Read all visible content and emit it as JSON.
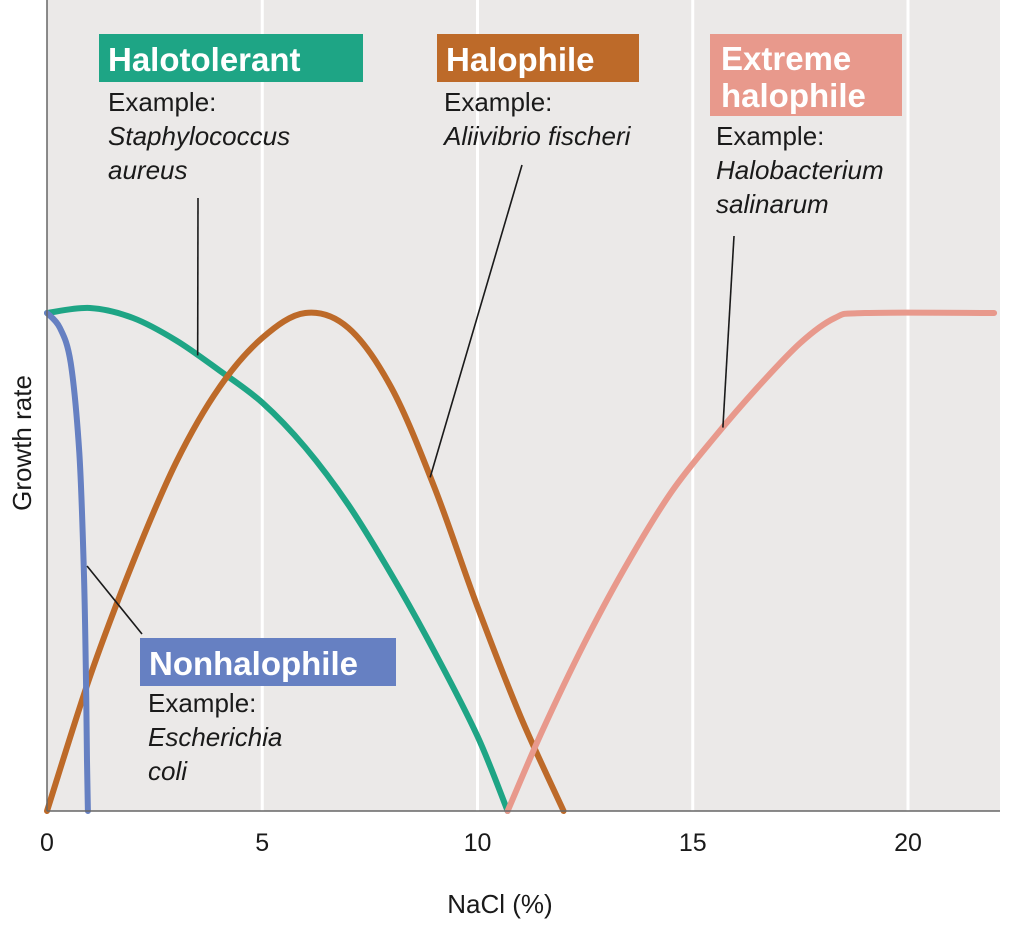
{
  "chart_data": {
    "type": "line",
    "xlabel": "NaCl (%)",
    "ylabel": "Growth rate",
    "xlim": [
      0,
      22
    ],
    "ylim": [
      0,
      1
    ],
    "xticks": [
      0,
      5,
      10,
      15,
      20
    ],
    "grid": "vertical",
    "series": [
      {
        "name": "Nonhalophile",
        "color": "#6680c2",
        "example_label": "Example:",
        "example": [
          "Escherichia",
          "coli"
        ],
        "points": [
          [
            0,
            1.0
          ],
          [
            0.3,
            0.97
          ],
          [
            0.55,
            0.9
          ],
          [
            0.75,
            0.72
          ],
          [
            0.85,
            0.5
          ],
          [
            0.9,
            0.3
          ],
          [
            0.93,
            0.1
          ],
          [
            0.95,
            0.0
          ]
        ]
      },
      {
        "name": "Halotolerant",
        "color": "#1ea585",
        "example_label": "Example:",
        "example": [
          "Staphylococcus",
          "aureus"
        ],
        "points": [
          [
            0,
            1.0
          ],
          [
            1,
            1.01
          ],
          [
            2,
            0.99
          ],
          [
            3,
            0.945
          ],
          [
            4,
            0.885
          ],
          [
            5,
            0.82
          ],
          [
            6,
            0.73
          ],
          [
            7,
            0.615
          ],
          [
            8,
            0.475
          ],
          [
            9,
            0.32
          ],
          [
            10,
            0.15
          ],
          [
            10.7,
            0.0
          ]
        ]
      },
      {
        "name": "Halophile",
        "color": "#bd6a29",
        "example_label": "Example:",
        "example": [
          "Aliivibrio fischeri"
        ],
        "points": [
          [
            0,
            0.0
          ],
          [
            1,
            0.27
          ],
          [
            2,
            0.5
          ],
          [
            3,
            0.7
          ],
          [
            4,
            0.85
          ],
          [
            5,
            0.95
          ],
          [
            6,
            1.0
          ],
          [
            7,
            0.97
          ],
          [
            8,
            0.85
          ],
          [
            9,
            0.65
          ],
          [
            10,
            0.41
          ],
          [
            11,
            0.19
          ],
          [
            12,
            0.0
          ]
        ]
      },
      {
        "name": "Extreme halophile",
        "name_lines": [
          "Extreme",
          "halophile"
        ],
        "color": "#e8998c",
        "example_label": "Example:",
        "example": [
          "Halobacterium",
          "salinarum"
        ],
        "points": [
          [
            10.7,
            0.0
          ],
          [
            11.5,
            0.16
          ],
          [
            12.5,
            0.34
          ],
          [
            13.5,
            0.5
          ],
          [
            14.5,
            0.64
          ],
          [
            15.5,
            0.75
          ],
          [
            16.5,
            0.85
          ],
          [
            17.5,
            0.94
          ],
          [
            18.3,
            0.99
          ],
          [
            19,
            1.0
          ],
          [
            22,
            1.0
          ]
        ]
      }
    ]
  }
}
